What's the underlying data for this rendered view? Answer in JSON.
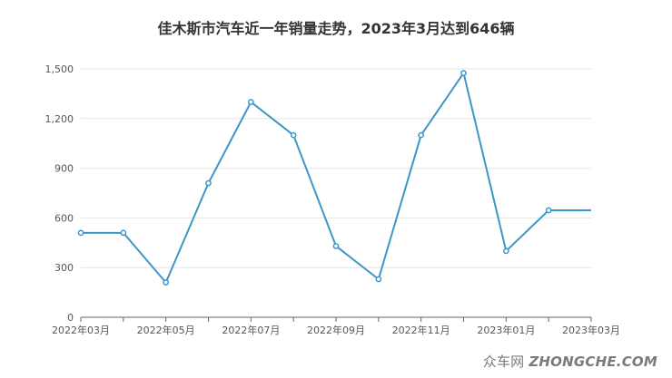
{
  "title": "佳木斯市汽车近一年销量走势，2023年3月达到646辆",
  "watermark": {
    "cn": "众车网",
    "en": "ZHONGCHE.COM"
  },
  "colors": {
    "line": "#3c96c8",
    "axis": "#666666",
    "grid": "#e6e6e6",
    "text": "#555555"
  },
  "chart_data": {
    "type": "line",
    "title": "佳木斯市汽车近一年销量走势，2023年3月达到646辆",
    "x": [
      "2022年03月",
      "2022年04月",
      "2022年05月",
      "2022年06月",
      "2022年07月",
      "2022年08月",
      "2022年09月",
      "2022年10月",
      "2022年11月",
      "2022年12月",
      "2023年01月",
      "2023年02月",
      "2023年03月"
    ],
    "x_tick_labels": [
      "2022年03月",
      "2022年05月",
      "2022年07月",
      "2022年09月",
      "2022年11月",
      "2023年01月",
      "2023年03月"
    ],
    "series": [
      {
        "values": [
          510,
          510,
          210,
          810,
          1300,
          1100,
          430,
          230,
          1100,
          1475,
          400,
          646,
          646
        ]
      }
    ],
    "y_ticks": [
      "0",
      "300",
      "600",
      "900",
      "1,200",
      "1,500"
    ],
    "y_tick_values": [
      0,
      300,
      600,
      900,
      1200,
      1500
    ],
    "ylim": [
      0,
      1500
    ],
    "grid": true,
    "legend": "none"
  }
}
